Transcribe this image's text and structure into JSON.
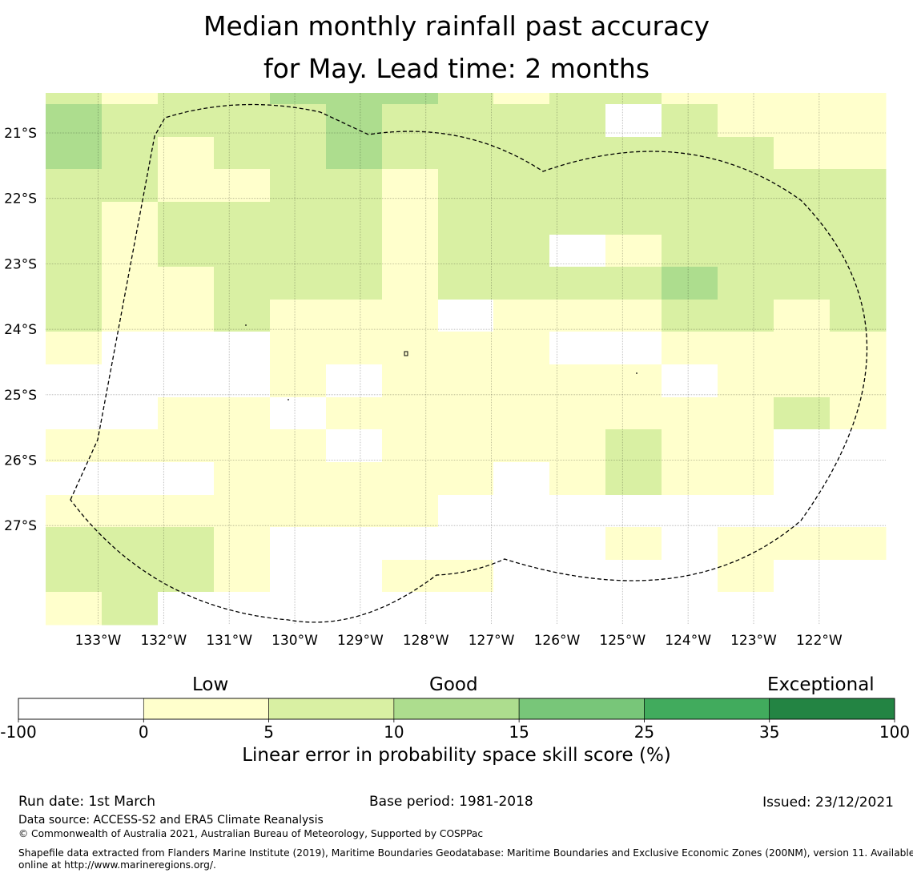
{
  "title": {
    "line1": "Median monthly rainfall past accuracy",
    "line2": "for May. Lead time: 2 months"
  },
  "map": {
    "lat_labels": [
      "21°S",
      "22°S",
      "23°S",
      "24°S",
      "25°S",
      "26°S",
      "27°S"
    ],
    "lon_labels": [
      "133°W",
      "132°W",
      "131°W",
      "130°W",
      "129°W",
      "128°W",
      "127°W",
      "126°W",
      "125°W",
      "124°W",
      "123°W",
      "122°W"
    ],
    "class_colors": [
      "#ffffff",
      "#ffffcc",
      "#d9f0a3",
      "#addd8e",
      "#78c679",
      "#41ab5d",
      "#238443"
    ],
    "grid_columns_lon": [
      "133.75°W to 121°W in 0.833° steps (15 columns)"
    ],
    "skill_class_grid": [
      [
        2,
        1,
        2,
        2,
        3,
        3,
        3,
        2,
        1,
        2,
        2,
        1,
        1,
        1,
        1
      ],
      [
        3,
        2,
        2,
        2,
        2,
        3,
        2,
        2,
        2,
        2,
        0,
        2,
        1,
        1,
        1
      ],
      [
        3,
        2,
        1,
        2,
        2,
        3,
        2,
        2,
        2,
        2,
        2,
        2,
        2,
        1,
        1
      ],
      [
        2,
        2,
        1,
        1,
        2,
        2,
        1,
        2,
        2,
        2,
        2,
        2,
        2,
        2,
        2
      ],
      [
        2,
        1,
        2,
        2,
        2,
        2,
        1,
        2,
        2,
        2,
        2,
        2,
        2,
        2,
        2
      ],
      [
        2,
        1,
        2,
        2,
        2,
        2,
        1,
        2,
        2,
        0,
        1,
        2,
        2,
        2,
        2
      ],
      [
        2,
        1,
        1,
        2,
        2,
        2,
        1,
        2,
        2,
        2,
        2,
        3,
        2,
        2,
        2
      ],
      [
        2,
        1,
        1,
        2,
        1,
        1,
        1,
        0,
        1,
        1,
        1,
        2,
        2,
        1,
        2
      ],
      [
        1,
        0,
        0,
        0,
        1,
        1,
        1,
        1,
        1,
        0,
        0,
        1,
        1,
        1,
        1
      ],
      [
        0,
        0,
        0,
        0,
        1,
        0,
        1,
        1,
        1,
        1,
        1,
        0,
        1,
        1,
        1
      ],
      [
        0,
        0,
        1,
        1,
        0,
        1,
        1,
        1,
        1,
        1,
        1,
        1,
        1,
        2,
        1
      ],
      [
        1,
        1,
        1,
        1,
        1,
        0,
        1,
        1,
        1,
        1,
        2,
        1,
        1,
        0,
        0
      ],
      [
        0,
        0,
        0,
        1,
        1,
        1,
        1,
        1,
        0,
        1,
        2,
        1,
        1,
        0,
        0
      ],
      [
        1,
        1,
        1,
        1,
        1,
        1,
        1,
        0,
        0,
        0,
        0,
        0,
        0,
        0,
        0
      ],
      [
        2,
        2,
        2,
        1,
        0,
        0,
        0,
        0,
        0,
        0,
        1,
        0,
        1,
        1,
        1
      ],
      [
        2,
        2,
        2,
        1,
        0,
        0,
        1,
        1,
        0,
        0,
        0,
        0,
        1,
        0,
        0
      ],
      [
        1,
        2,
        0,
        0,
        0,
        0,
        0,
        0,
        0,
        0,
        0,
        0,
        0,
        0,
        0
      ]
    ]
  },
  "colorbar": {
    "category_low": "Low",
    "category_good": "Good",
    "category_exceptional": "Exceptional",
    "tick_labels": [
      "-100",
      "0",
      "5",
      "10",
      "15",
      "25",
      "35",
      "100"
    ],
    "colors": [
      "#ffffff",
      "#ffffcc",
      "#d9f0a3",
      "#addd8e",
      "#78c679",
      "#41ab5d",
      "#238443"
    ],
    "title": "Linear error in probability space skill score (%)"
  },
  "footer": {
    "run_date": "Run date: 1st March",
    "base_period": "Base period: 1981-2018",
    "issued": "Issued: 23/12/2021",
    "data_source": "Data source: ACCESS-S2 and ERA5 Climate Reanalysis",
    "copyright": "© Commonwealth of Australia 2021, Australian Bureau of Meteorology, Supported by COSPPac",
    "shapefile_line1": "Shapefile data extracted from Flanders Marine Institute (2019), Maritime Boundaries Geodatabase: Maritime Boundaries and Exclusive Economic Zones (200NM), version 11. Available",
    "shapefile_line2": "online at http://www.marineregions.org/."
  }
}
